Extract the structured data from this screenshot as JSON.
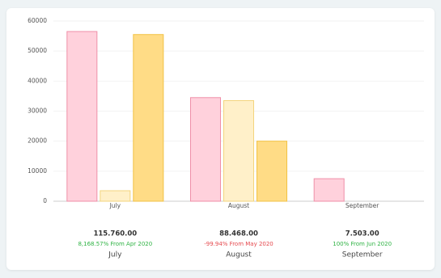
{
  "chart_data": {
    "type": "bar",
    "categories": [
      "July",
      "August",
      "September"
    ],
    "series": [
      {
        "color": "#ffd1dc",
        "stroke": "#ef8fa8",
        "values": [
          56500,
          34500,
          7500
        ]
      },
      {
        "color": "#fff0c9",
        "stroke": "#f3d57e",
        "values": [
          3500,
          33500,
          0
        ]
      },
      {
        "color": "#ffdc86",
        "stroke": "#f2c244",
        "values": [
          55500,
          20000,
          0
        ]
      }
    ],
    "ylim": [
      0,
      60000
    ],
    "yticks": [
      0,
      10000,
      20000,
      30000,
      40000,
      50000,
      60000
    ],
    "grid": true
  },
  "summary": [
    {
      "total": "115.760.00",
      "change": "8,168.57% From Apr 2020",
      "color": "#2fb344",
      "month": "July"
    },
    {
      "total": "88.468.00",
      "change": "-99.94% From May 2020",
      "color": "#e5484d",
      "month": "August"
    },
    {
      "total": "7.503.00",
      "change": "100% From Jun 2020",
      "color": "#2fb344",
      "month": "September"
    }
  ]
}
